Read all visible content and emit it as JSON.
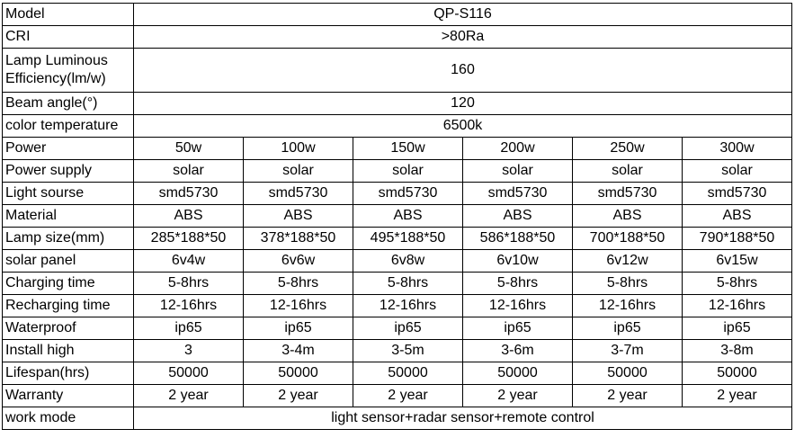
{
  "rows_single": [
    {
      "label": "Model",
      "value": "QP-S116"
    },
    {
      "label": "CRI",
      "value": ">80Ra"
    },
    {
      "label": "Lamp Luminous Efficiency(lm/w)",
      "value": "160"
    },
    {
      "label": "Beam angle(°)",
      "value": "120"
    },
    {
      "label": "color temperature",
      "value": "6500k"
    }
  ],
  "rows_multi": [
    {
      "label": "Power",
      "values": [
        "50w",
        "100w",
        "150w",
        "200w",
        "250w",
        "300w"
      ]
    },
    {
      "label": "Power supply",
      "values": [
        "solar",
        "solar",
        "solar",
        "solar",
        "solar",
        "solar"
      ]
    },
    {
      "label": "Light sourse",
      "values": [
        "smd5730",
        "smd5730",
        "smd5730",
        "smd5730",
        "smd5730",
        "smd5730"
      ]
    },
    {
      "label": "Material",
      "values": [
        "ABS",
        "ABS",
        "ABS",
        "ABS",
        "ABS",
        "ABS"
      ]
    },
    {
      "label": "Lamp size(mm)",
      "values": [
        "285*188*50",
        "378*188*50",
        "495*188*50",
        "586*188*50",
        "700*188*50",
        "790*188*50"
      ]
    },
    {
      "label": "solar panel",
      "values": [
        "6v4w",
        "6v6w",
        "6v8w",
        "6v10w",
        "6v12w",
        "6v15w"
      ]
    },
    {
      "label": "Charging time",
      "values": [
        "5-8hrs",
        "5-8hrs",
        "5-8hrs",
        "5-8hrs",
        "5-8hrs",
        "5-8hrs"
      ]
    },
    {
      "label": "Recharging time",
      "values": [
        "12-16hrs",
        "12-16hrs",
        "12-16hrs",
        "12-16hrs",
        "12-16hrs",
        "12-16hrs"
      ]
    },
    {
      "label": "Waterproof",
      "values": [
        "ip65",
        "ip65",
        "ip65",
        "ip65",
        "ip65",
        "ip65"
      ]
    },
    {
      "label": "Install high",
      "values": [
        "3",
        "3-4m",
        "3-5m",
        "3-6m",
        "3-7m",
        "3-8m"
      ]
    },
    {
      "label": "Lifespan(hrs)",
      "values": [
        "50000",
        "50000",
        "50000",
        "50000",
        "50000",
        "50000"
      ]
    },
    {
      "label": "Warranty",
      "values": [
        "2 year",
        "2 year",
        "2 year",
        "2 year",
        "2 year",
        "2 year"
      ]
    }
  ],
  "row_footer": {
    "label": "work mode",
    "value": "light sensor+radar sensor+remote control"
  }
}
